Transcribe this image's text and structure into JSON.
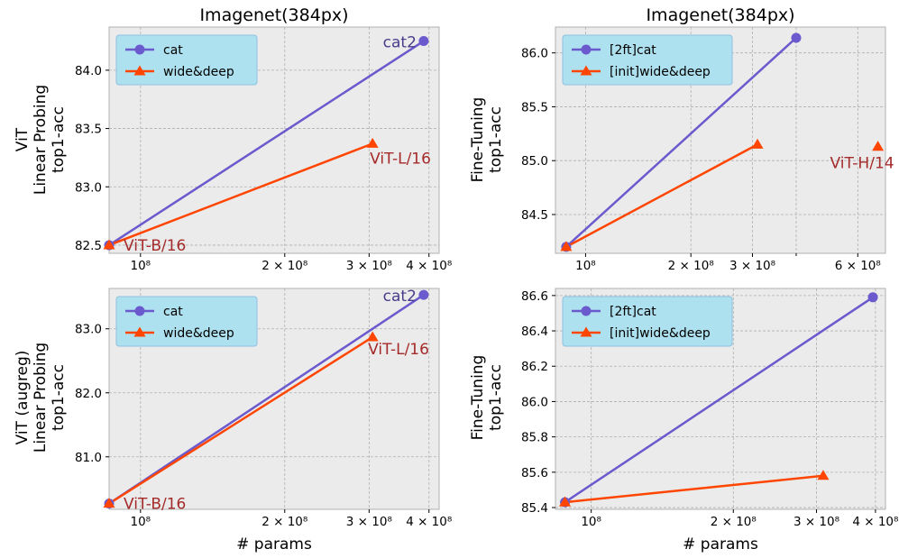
{
  "chart_data": [
    {
      "type": "line",
      "title": "Imagenet(384px)",
      "ylabel_lines": [
        "ViT",
        "Linear Probing",
        "top1-acc"
      ],
      "xlabel": "",
      "xscale": "log",
      "xlim": [
        86000000,
        420000000
      ],
      "ylim": [
        82.43,
        84.37
      ],
      "xticks": [
        {
          "value": 100000000,
          "label": "10⁸"
        },
        {
          "value": 200000000,
          "label": "2 × 10⁸"
        },
        {
          "value": 300000000,
          "label": "3 × 10⁸"
        },
        {
          "value": 400000000,
          "label": "4 × 10⁸"
        }
      ],
      "yticks": [
        {
          "value": 82.5,
          "label": "82.5"
        },
        {
          "value": 83.0,
          "label": "83.0"
        },
        {
          "value": 83.5,
          "label": "83.5"
        },
        {
          "value": 84.0,
          "label": "84.0"
        }
      ],
      "series": [
        {
          "name": "cat",
          "color": "#6a5acd",
          "marker": "circle",
          "x": [
            86000000,
            390000000
          ],
          "y": [
            82.5,
            84.25
          ]
        },
        {
          "name": "wide&deep",
          "color": "#ff4500",
          "marker": "triangle",
          "x": [
            86000000,
            305000000
          ],
          "y": [
            82.5,
            83.37
          ]
        }
      ],
      "annotations": [
        {
          "text": "cat2",
          "x": 390000000,
          "y": 84.25,
          "color": "#483d8b",
          "align": "end",
          "dx": -8,
          "dy": 7
        },
        {
          "text": "ViT-L/16",
          "x": 305000000,
          "y": 83.37,
          "color": "#a52a2a",
          "align": "start",
          "dx": -3,
          "dy": 22
        },
        {
          "text": "ViT-B/16",
          "x": 86000000,
          "y": 82.5,
          "color": "#a52a2a",
          "align": "start",
          "dx": 16,
          "dy": 6
        }
      ],
      "legend": "top-left"
    },
    {
      "type": "line",
      "title": "Imagenet(384px)",
      "ylabel_lines": [
        "Fine-Tuning",
        "top1-acc"
      ],
      "xlabel": "",
      "xscale": "log",
      "xlim": [
        82000000,
        720000000
      ],
      "ylim": [
        84.14,
        86.24
      ],
      "xticks": [
        {
          "value": 100000000,
          "label": "10⁸"
        },
        {
          "value": 200000000,
          "label": "2 × 10⁸"
        },
        {
          "value": 300000000,
          "label": "3 × 10⁸"
        },
        {
          "value": 600000000,
          "label": "6 × 10⁸"
        }
      ],
      "yticks": [
        {
          "value": 84.5,
          "label": "84.5"
        },
        {
          "value": 85.0,
          "label": "85.0"
        },
        {
          "value": 85.5,
          "label": "85.5"
        },
        {
          "value": 86.0,
          "label": "86.0"
        }
      ],
      "extra_vgrid": [
        400000000
      ],
      "series": [
        {
          "name": "[2ft]cat",
          "color": "#6a5acd",
          "marker": "circle",
          "x": [
            88000000,
            400000000
          ],
          "y": [
            84.2,
            86.14
          ]
        },
        {
          "name": "[init]wide&deep",
          "color": "#ff4500",
          "marker": "triangle",
          "x": [
            88000000,
            310000000
          ],
          "y": [
            84.2,
            85.15
          ]
        },
        {
          "name": "",
          "color": "#ff4500",
          "marker": "triangle",
          "x": [
            685000000
          ],
          "y": [
            85.13
          ],
          "no_line": true
        }
      ],
      "annotations": [
        {
          "text": "ViT-H/14",
          "x": 685000000,
          "y": 85.13,
          "color": "#a52a2a",
          "align": "end",
          "dx": 18,
          "dy": 24
        }
      ],
      "legend": "top-left"
    },
    {
      "type": "line",
      "title": "",
      "ylabel_lines": [
        "ViT (augreg)",
        "Linear Probing",
        "top1-acc"
      ],
      "xlabel": "# params",
      "xscale": "log",
      "xlim": [
        86000000,
        420000000
      ],
      "ylim": [
        80.18,
        83.63
      ],
      "xticks": [
        {
          "value": 100000000,
          "label": "10⁸"
        },
        {
          "value": 200000000,
          "label": "2 × 10⁸"
        },
        {
          "value": 300000000,
          "label": "3 × 10⁸"
        },
        {
          "value": 400000000,
          "label": "4 × 10⁸"
        }
      ],
      "yticks": [
        {
          "value": 81.0,
          "label": "81.0"
        },
        {
          "value": 82.0,
          "label": "82.0"
        },
        {
          "value": 83.0,
          "label": "83.0"
        }
      ],
      "series": [
        {
          "name": "cat",
          "color": "#6a5acd",
          "marker": "circle",
          "x": [
            86000000,
            390000000
          ],
          "y": [
            80.27,
            83.53
          ]
        },
        {
          "name": "wide&deep",
          "color": "#ff4500",
          "marker": "triangle",
          "x": [
            86000000,
            305000000
          ],
          "y": [
            80.27,
            82.87
          ]
        }
      ],
      "annotations": [
        {
          "text": "cat2",
          "x": 390000000,
          "y": 83.53,
          "color": "#483d8b",
          "align": "end",
          "dx": -8,
          "dy": 7
        },
        {
          "text": "ViT-L/16",
          "x": 305000000,
          "y": 82.87,
          "color": "#a52a2a",
          "align": "start",
          "dx": -5,
          "dy": 19
        },
        {
          "text": "ViT-B/16",
          "x": 86000000,
          "y": 80.27,
          "color": "#a52a2a",
          "align": "start",
          "dx": 16,
          "dy": 6
        }
      ],
      "legend": "top-left"
    },
    {
      "type": "line",
      "title": "",
      "ylabel_lines": [
        "Fine-Tuning",
        "top1-acc"
      ],
      "xlabel": "# params",
      "xscale": "log",
      "xlim": [
        84000000,
        420000000
      ],
      "ylim": [
        85.39,
        86.64
      ],
      "xticks": [
        {
          "value": 100000000,
          "label": "10⁸"
        },
        {
          "value": 200000000,
          "label": "2 × 10⁸"
        },
        {
          "value": 300000000,
          "label": "3 × 10⁸"
        },
        {
          "value": 400000000,
          "label": "4 × 10⁸"
        }
      ],
      "yticks": [
        {
          "value": 85.4,
          "label": "85.4"
        },
        {
          "value": 85.6,
          "label": "85.6"
        },
        {
          "value": 85.8,
          "label": "85.8"
        },
        {
          "value": 86.0,
          "label": "86.0"
        },
        {
          "value": 86.2,
          "label": "86.2"
        },
        {
          "value": 86.4,
          "label": "86.4"
        },
        {
          "value": 86.6,
          "label": "86.6"
        }
      ],
      "series": [
        {
          "name": "[2ft]cat",
          "color": "#6a5acd",
          "marker": "circle",
          "x": [
            88000000,
            395000000
          ],
          "y": [
            85.43,
            86.59
          ]
        },
        {
          "name": "[init]wide&deep",
          "color": "#ff4500",
          "marker": "triangle",
          "x": [
            88000000,
            310000000
          ],
          "y": [
            85.43,
            85.58
          ]
        }
      ],
      "annotations": [],
      "legend": "top-left"
    }
  ]
}
